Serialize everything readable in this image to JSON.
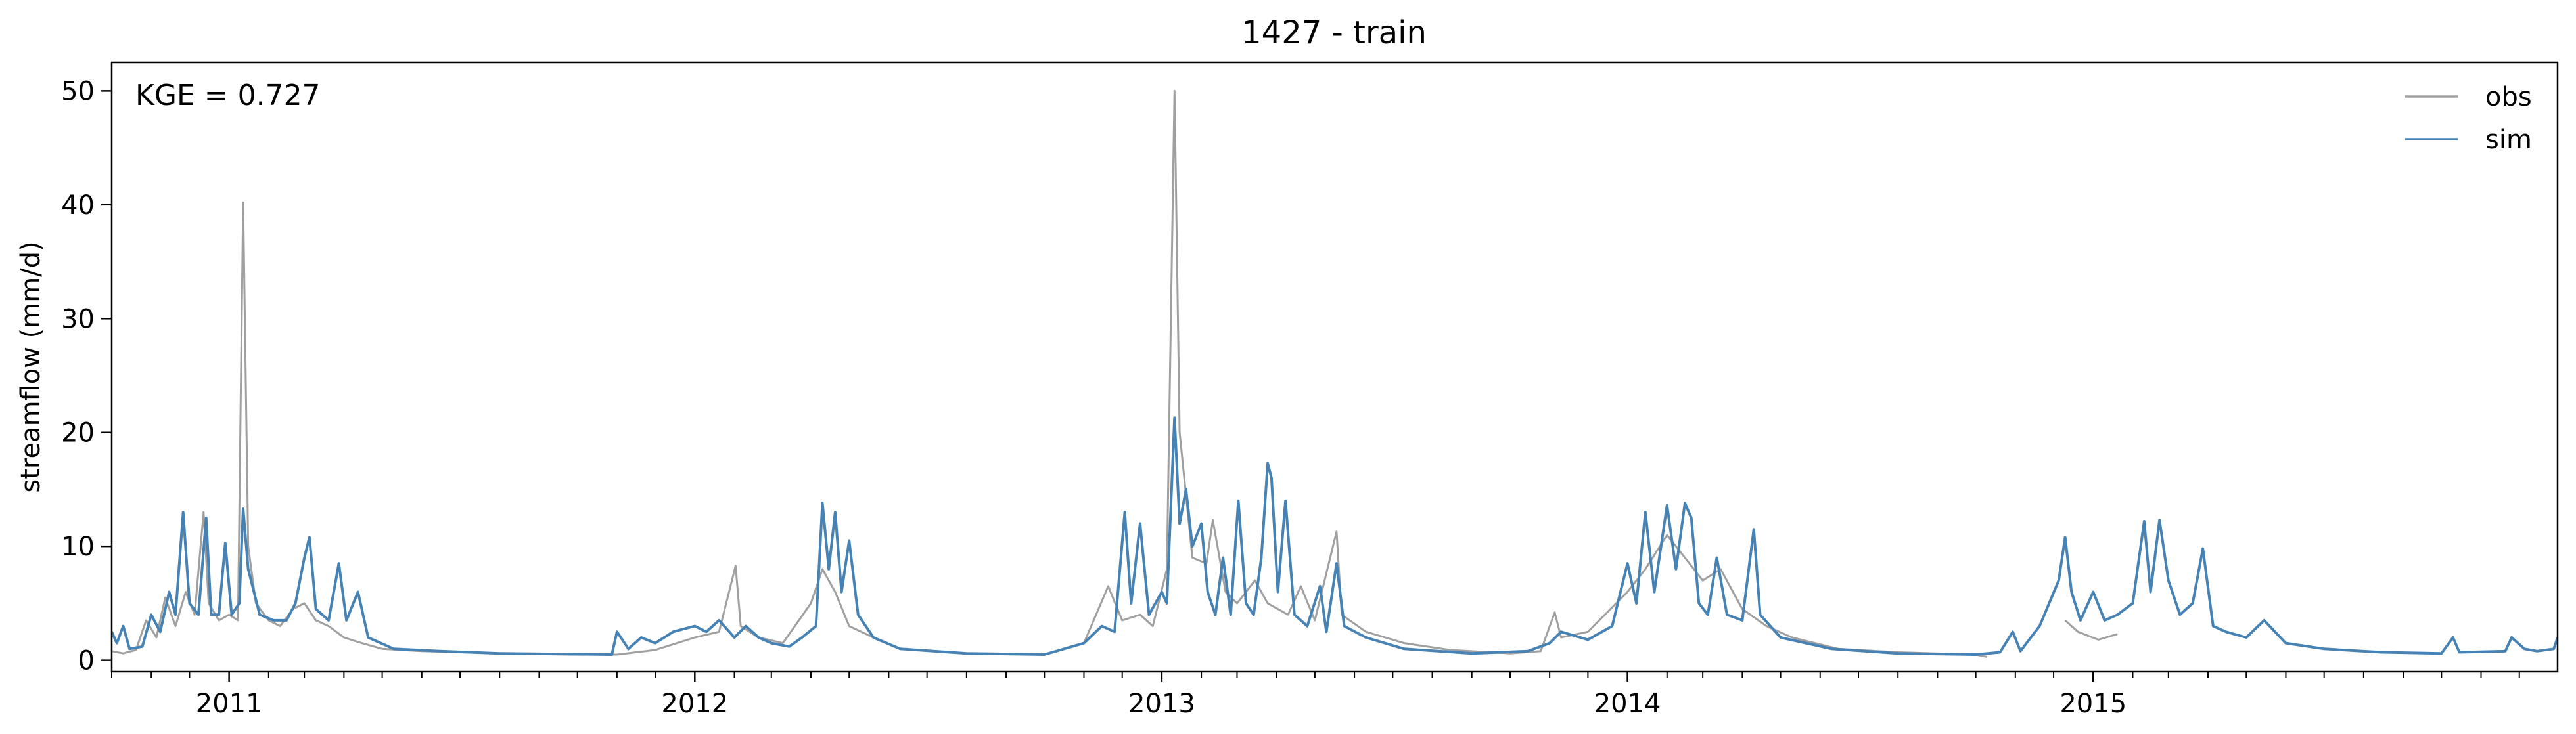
{
  "chart_data": {
    "type": "line",
    "title": "1427 - train",
    "xlabel": "",
    "ylabel": "streamflow (mm/d)",
    "annotation": "KGE = 0.727",
    "xlim": [
      "2010-10-01",
      "2015-12-31"
    ],
    "ylim": [
      -1,
      52.5
    ],
    "x_ticks": [
      "2011",
      "2012",
      "2013",
      "2014",
      "2015"
    ],
    "y_ticks": [
      0,
      10,
      20,
      30,
      40,
      50
    ],
    "grid": false,
    "legend": {
      "placement": "top-right",
      "entries": [
        "obs",
        "sim"
      ]
    },
    "series": [
      {
        "name": "obs",
        "color": "#a0a0a0",
        "points": [
          [
            "2010-10-01",
            0.8
          ],
          [
            "2010-10-10",
            0.6
          ],
          [
            "2010-10-20",
            0.9
          ],
          [
            "2010-10-28",
            3.5
          ],
          [
            "2010-11-05",
            2.0
          ],
          [
            "2010-11-12",
            5.5
          ],
          [
            "2010-11-20",
            3.0
          ],
          [
            "2010-11-28",
            6.0
          ],
          [
            "2010-12-05",
            4.0
          ],
          [
            "2010-12-12",
            13.0
          ],
          [
            "2010-12-16",
            5.0
          ],
          [
            "2010-12-24",
            3.5
          ],
          [
            "2011-01-01",
            4.0
          ],
          [
            "2011-01-08",
            3.5
          ],
          [
            "2011-01-12",
            40.2
          ],
          [
            "2011-01-16",
            10.0
          ],
          [
            "2011-01-22",
            5.0
          ],
          [
            "2011-02-01",
            3.5
          ],
          [
            "2011-02-10",
            3.0
          ],
          [
            "2011-02-20",
            4.5
          ],
          [
            "2011-03-01",
            5.0
          ],
          [
            "2011-03-10",
            3.5
          ],
          [
            "2011-03-20",
            3.0
          ],
          [
            "2011-04-01",
            2.0
          ],
          [
            "2011-04-15",
            1.5
          ],
          [
            "2011-05-01",
            1.0
          ],
          [
            "2011-06-01",
            0.8
          ],
          [
            "2011-08-01",
            0.6
          ],
          [
            "2011-10-01",
            0.5
          ],
          [
            "2011-11-01",
            0.5
          ],
          [
            "2011-12-01",
            0.9
          ],
          [
            "2012-01-01",
            2.0
          ],
          [
            "2012-01-20",
            2.5
          ],
          [
            "2012-02-02",
            8.3
          ],
          [
            "2012-02-06",
            3.0
          ],
          [
            "2012-02-20",
            2.0
          ],
          [
            "2012-03-10",
            1.5
          ],
          [
            "2012-04-01",
            5.0
          ],
          [
            "2012-04-10",
            8.0
          ],
          [
            "2012-04-20",
            6.0
          ],
          [
            "2012-05-01",
            3.0
          ],
          [
            "2012-05-20",
            2.0
          ],
          [
            "2012-06-10",
            1.0
          ],
          [
            "2012-08-01",
            0.6
          ],
          [
            "2012-10-01",
            0.5
          ],
          [
            "2012-11-01",
            1.5
          ],
          [
            "2012-11-20",
            6.5
          ],
          [
            "2012-12-01",
            3.5
          ],
          [
            "2012-12-15",
            4.0
          ],
          [
            "2012-12-25",
            3.0
          ],
          [
            "2013-01-05",
            8.0
          ],
          [
            "2013-01-11",
            50.0
          ],
          [
            "2013-01-15",
            20.0
          ],
          [
            "2013-01-25",
            9.0
          ],
          [
            "2013-02-05",
            8.5
          ],
          [
            "2013-02-10",
            12.3
          ],
          [
            "2013-02-20",
            6.0
          ],
          [
            "2013-03-01",
            5.0
          ],
          [
            "2013-03-15",
            7.0
          ],
          [
            "2013-03-25",
            5.0
          ],
          [
            "2013-04-10",
            4.0
          ],
          [
            "2013-04-20",
            6.5
          ],
          [
            "2013-05-01",
            3.5
          ],
          [
            "2013-05-18",
            11.3
          ],
          [
            "2013-05-22",
            4.0
          ],
          [
            "2013-06-10",
            2.5
          ],
          [
            "2013-07-10",
            1.5
          ],
          [
            "2013-08-15",
            0.9
          ],
          [
            "2013-10-01",
            0.6
          ],
          [
            "2013-10-25",
            0.8
          ],
          [
            "2013-11-05",
            4.2
          ],
          [
            "2013-11-10",
            2.0
          ],
          [
            "2013-12-01",
            2.5
          ],
          [
            "2014-01-01",
            6.0
          ],
          [
            "2014-01-15",
            8.0
          ],
          [
            "2014-02-01",
            11.0
          ],
          [
            "2014-02-15",
            9.0
          ],
          [
            "2014-03-01",
            7.0
          ],
          [
            "2014-03-15",
            8.0
          ],
          [
            "2014-04-01",
            4.5
          ],
          [
            "2014-04-20",
            3.0
          ],
          [
            "2014-05-10",
            2.0
          ],
          [
            "2014-06-15",
            1.0
          ],
          [
            "2014-08-01",
            0.7
          ],
          [
            "2014-10-01",
            0.5
          ],
          [
            "2014-10-10",
            0.3
          ]
        ],
        "points_after_gap": [
          [
            "2014-12-10",
            3.5
          ],
          [
            "2014-12-20",
            2.5
          ],
          [
            "2015-01-05",
            1.8
          ],
          [
            "2015-01-20",
            2.3
          ]
        ]
      },
      {
        "name": "sim",
        "color": "#4682b4",
        "points": [
          [
            "2010-10-01",
            2.5
          ],
          [
            "2010-10-05",
            1.5
          ],
          [
            "2010-10-10",
            3.0
          ],
          [
            "2010-10-15",
            1.0
          ],
          [
            "2010-10-25",
            1.2
          ],
          [
            "2010-11-01",
            4.0
          ],
          [
            "2010-11-08",
            2.5
          ],
          [
            "2010-11-15",
            6.0
          ],
          [
            "2010-11-20",
            4.0
          ],
          [
            "2010-11-26",
            13.0
          ],
          [
            "2010-12-01",
            5.0
          ],
          [
            "2010-12-08",
            4.0
          ],
          [
            "2010-12-14",
            12.5
          ],
          [
            "2010-12-18",
            4.0
          ],
          [
            "2010-12-24",
            4.0
          ],
          [
            "2010-12-29",
            10.3
          ],
          [
            "2011-01-03",
            4.0
          ],
          [
            "2011-01-09",
            5.0
          ],
          [
            "2011-01-12",
            13.3
          ],
          [
            "2011-01-16",
            8.0
          ],
          [
            "2011-01-25",
            4.0
          ],
          [
            "2011-02-05",
            3.5
          ],
          [
            "2011-02-15",
            3.5
          ],
          [
            "2011-02-22",
            5.0
          ],
          [
            "2011-03-01",
            9.0
          ],
          [
            "2011-03-05",
            10.8
          ],
          [
            "2011-03-10",
            4.5
          ],
          [
            "2011-03-20",
            3.5
          ],
          [
            "2011-03-28",
            8.5
          ],
          [
            "2011-04-03",
            3.5
          ],
          [
            "2011-04-12",
            6.0
          ],
          [
            "2011-04-20",
            2.0
          ],
          [
            "2011-05-10",
            1.0
          ],
          [
            "2011-06-15",
            0.8
          ],
          [
            "2011-08-01",
            0.6
          ],
          [
            "2011-10-28",
            0.5
          ],
          [
            "2011-11-01",
            2.5
          ],
          [
            "2011-11-10",
            1.0
          ],
          [
            "2011-11-20",
            2.0
          ],
          [
            "2011-12-01",
            1.5
          ],
          [
            "2011-12-15",
            2.5
          ],
          [
            "2012-01-01",
            3.0
          ],
          [
            "2012-01-10",
            2.5
          ],
          [
            "2012-01-20",
            3.5
          ],
          [
            "2012-02-01",
            2.0
          ],
          [
            "2012-02-10",
            3.0
          ],
          [
            "2012-02-20",
            2.0
          ],
          [
            "2012-03-01",
            1.5
          ],
          [
            "2012-03-15",
            1.2
          ],
          [
            "2012-03-25",
            2.0
          ],
          [
            "2012-04-05",
            3.0
          ],
          [
            "2012-04-10",
            13.8
          ],
          [
            "2012-04-15",
            8.0
          ],
          [
            "2012-04-20",
            13.0
          ],
          [
            "2012-04-25",
            6.0
          ],
          [
            "2012-05-01",
            10.5
          ],
          [
            "2012-05-08",
            4.0
          ],
          [
            "2012-05-20",
            2.0
          ],
          [
            "2012-06-10",
            1.0
          ],
          [
            "2012-08-01",
            0.6
          ],
          [
            "2012-10-01",
            0.5
          ],
          [
            "2012-11-01",
            1.5
          ],
          [
            "2012-11-15",
            3.0
          ],
          [
            "2012-11-25",
            2.5
          ],
          [
            "2012-12-03",
            13.0
          ],
          [
            "2012-12-08",
            5.0
          ],
          [
            "2012-12-15",
            12.0
          ],
          [
            "2012-12-22",
            4.0
          ],
          [
            "2013-01-01",
            6.0
          ],
          [
            "2013-01-05",
            5.0
          ],
          [
            "2013-01-11",
            21.3
          ],
          [
            "2013-01-15",
            12.0
          ],
          [
            "2013-01-20",
            15.0
          ],
          [
            "2013-01-25",
            10.0
          ],
          [
            "2013-02-01",
            12.0
          ],
          [
            "2013-02-06",
            6.0
          ],
          [
            "2013-02-12",
            4.0
          ],
          [
            "2013-02-18",
            9.0
          ],
          [
            "2013-02-24",
            4.0
          ],
          [
            "2013-03-02",
            14.0
          ],
          [
            "2013-03-08",
            5.0
          ],
          [
            "2013-03-14",
            4.0
          ],
          [
            "2013-03-20",
            9.0
          ],
          [
            "2013-03-25",
            17.3
          ],
          [
            "2013-03-28",
            16.0
          ],
          [
            "2013-04-02",
            6.0
          ],
          [
            "2013-04-08",
            14.0
          ],
          [
            "2013-04-15",
            4.0
          ],
          [
            "2013-04-25",
            3.0
          ],
          [
            "2013-05-05",
            6.5
          ],
          [
            "2013-05-10",
            2.5
          ],
          [
            "2013-05-18",
            8.5
          ],
          [
            "2013-05-24",
            3.0
          ],
          [
            "2013-06-10",
            2.0
          ],
          [
            "2013-07-10",
            1.0
          ],
          [
            "2013-09-01",
            0.6
          ],
          [
            "2013-10-15",
            0.8
          ],
          [
            "2013-11-01",
            1.5
          ],
          [
            "2013-11-10",
            2.5
          ],
          [
            "2013-12-01",
            1.8
          ],
          [
            "2013-12-20",
            3.0
          ],
          [
            "2014-01-01",
            8.5
          ],
          [
            "2014-01-08",
            5.0
          ],
          [
            "2014-01-15",
            13.0
          ],
          [
            "2014-01-22",
            6.0
          ],
          [
            "2014-02-01",
            13.6
          ],
          [
            "2014-02-08",
            8.0
          ],
          [
            "2014-02-15",
            13.8
          ],
          [
            "2014-02-20",
            12.5
          ],
          [
            "2014-02-26",
            5.0
          ],
          [
            "2014-03-05",
            4.0
          ],
          [
            "2014-03-12",
            9.0
          ],
          [
            "2014-03-20",
            4.0
          ],
          [
            "2014-04-01",
            3.5
          ],
          [
            "2014-04-10",
            11.5
          ],
          [
            "2014-04-15",
            4.0
          ],
          [
            "2014-05-01",
            2.0
          ],
          [
            "2014-06-10",
            1.0
          ],
          [
            "2014-08-01",
            0.6
          ],
          [
            "2014-10-01",
            0.5
          ],
          [
            "2014-10-20",
            0.7
          ],
          [
            "2014-10-30",
            2.5
          ],
          [
            "2014-11-05",
            0.8
          ],
          [
            "2014-11-20",
            3.0
          ],
          [
            "2014-12-05",
            7.0
          ],
          [
            "2014-12-10",
            10.8
          ],
          [
            "2014-12-15",
            6.0
          ],
          [
            "2014-12-22",
            3.5
          ],
          [
            "2015-01-01",
            6.0
          ],
          [
            "2015-01-10",
            3.5
          ],
          [
            "2015-01-20",
            4.0
          ],
          [
            "2015-02-01",
            5.0
          ],
          [
            "2015-02-10",
            12.2
          ],
          [
            "2015-02-15",
            6.0
          ],
          [
            "2015-02-22",
            12.3
          ],
          [
            "2015-03-01",
            7.0
          ],
          [
            "2015-03-10",
            4.0
          ],
          [
            "2015-03-20",
            5.0
          ],
          [
            "2015-03-28",
            9.8
          ],
          [
            "2015-04-05",
            3.0
          ],
          [
            "2015-04-15",
            2.5
          ],
          [
            "2015-05-01",
            2.0
          ],
          [
            "2015-05-15",
            3.5
          ],
          [
            "2015-06-01",
            1.5
          ],
          [
            "2015-07-01",
            1.0
          ],
          [
            "2015-08-15",
            0.7
          ],
          [
            "2015-10-01",
            0.6
          ],
          [
            "2015-10-10",
            2.0
          ],
          [
            "2015-10-15",
            0.7
          ],
          [
            "2015-11-20",
            0.8
          ],
          [
            "2015-11-25",
            2.0
          ],
          [
            "2015-12-05",
            1.0
          ],
          [
            "2015-12-15",
            0.8
          ],
          [
            "2015-12-28",
            1.0
          ],
          [
            "2015-12-31",
            2.0
          ]
        ]
      }
    ]
  }
}
